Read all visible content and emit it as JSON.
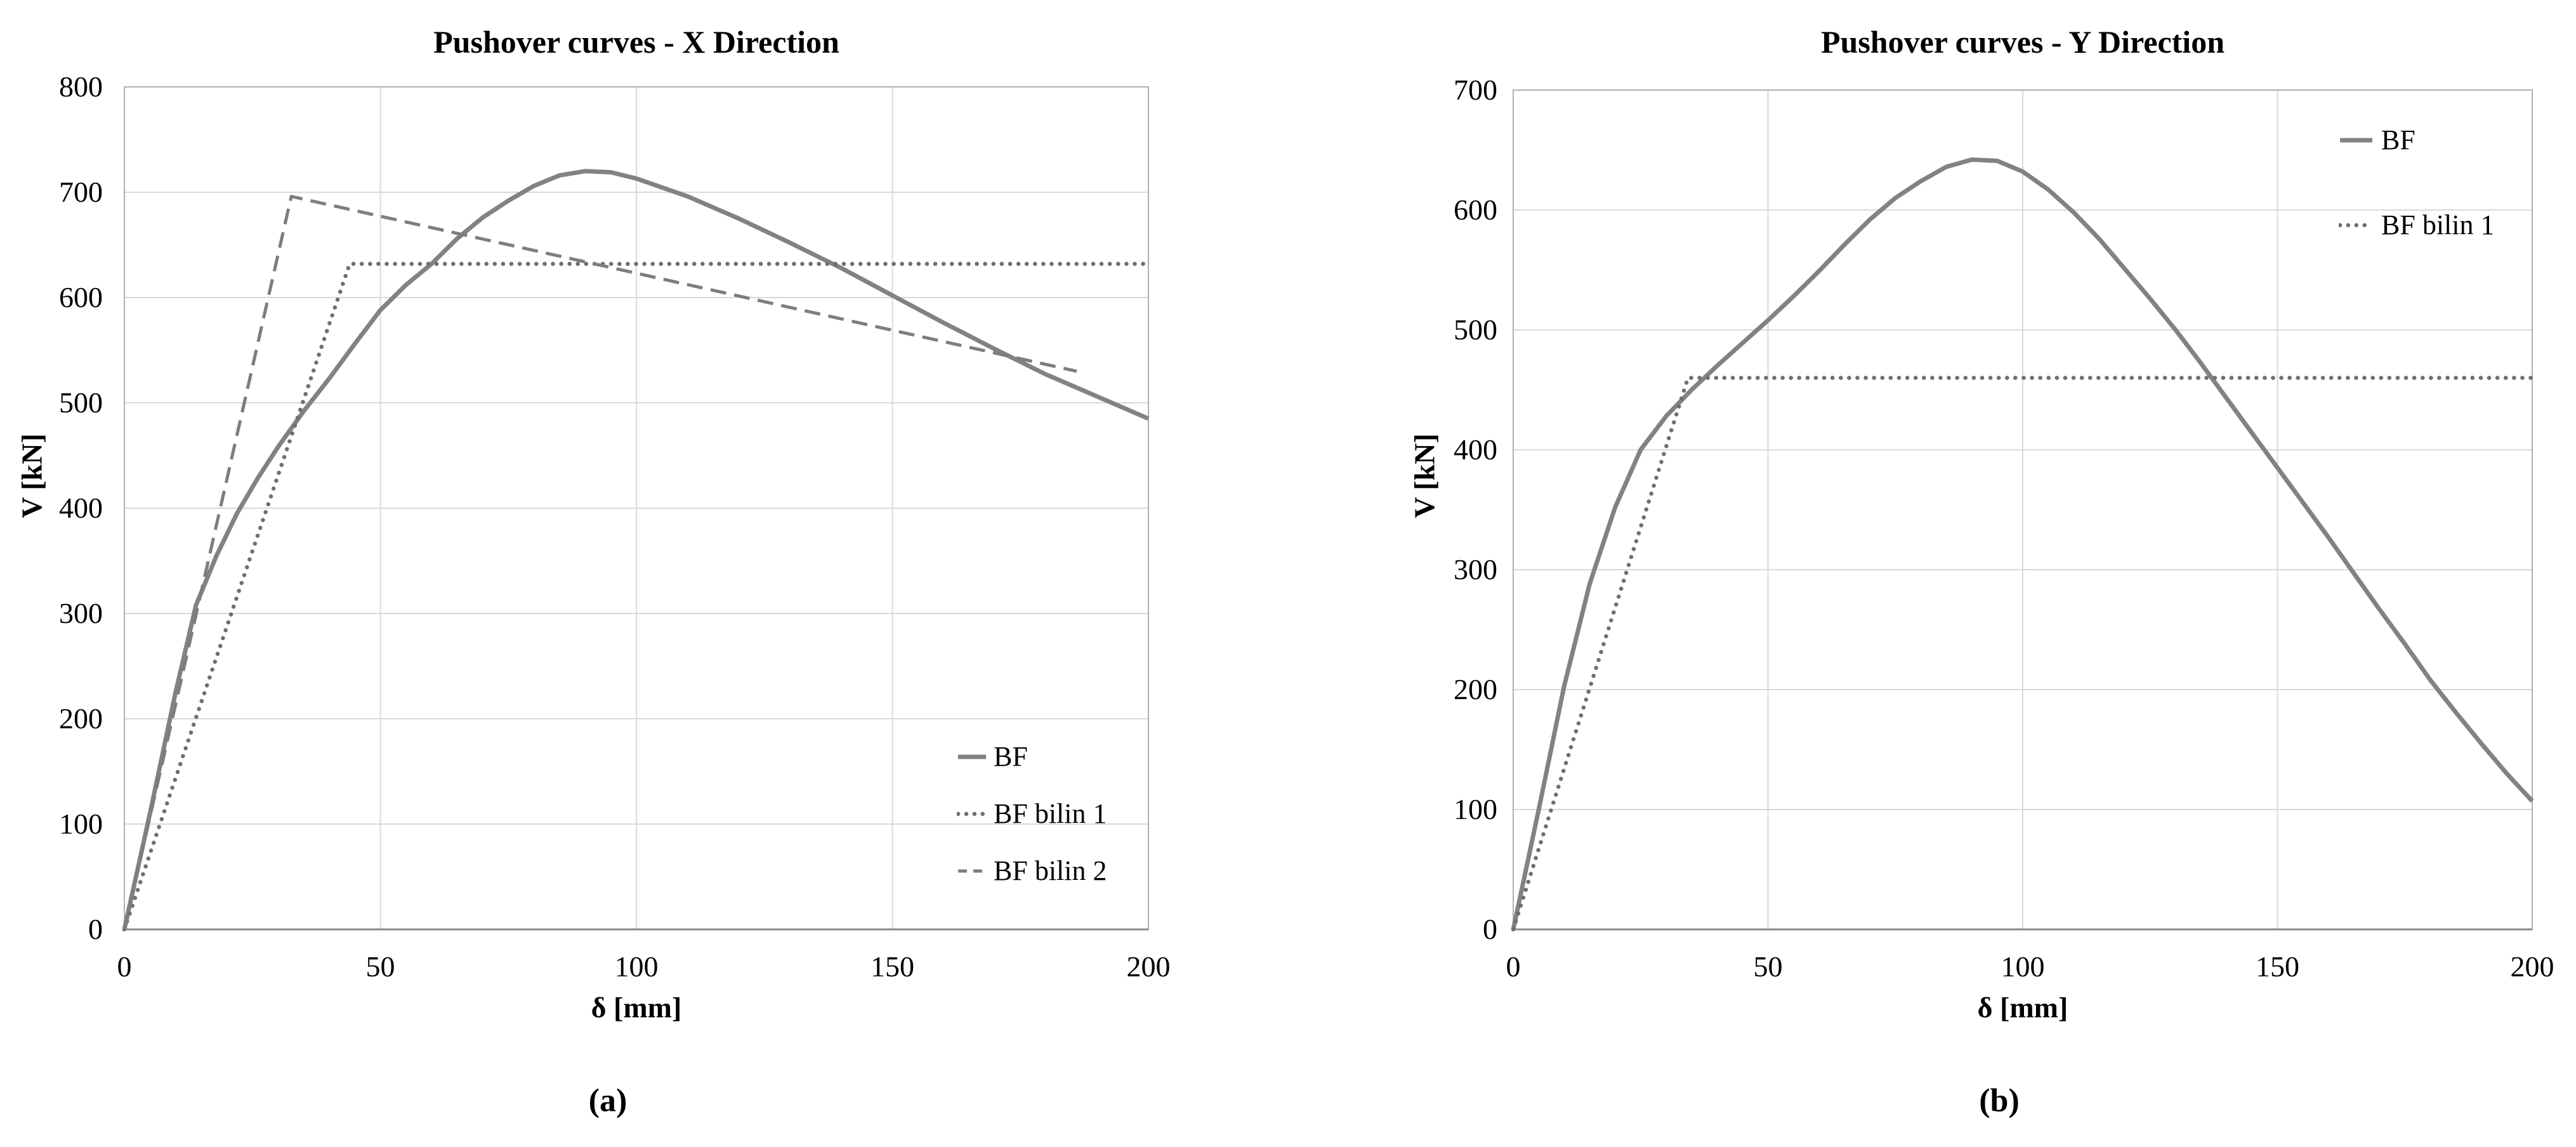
{
  "captions": {
    "a": "(a)",
    "b": "(b)"
  },
  "colors": {
    "background": "#ffffff",
    "text": "#000000",
    "grid": "#d9d9d9",
    "plot_border": "#b0b0b0",
    "axis_line": "#8a8a8a",
    "series_solid": "#828282",
    "series_dotted": "#6f6f6f",
    "series_dashed": "#7d7d7d"
  },
  "chart_data": [
    {
      "type": "line",
      "title": "Pushover curves - X Direction",
      "xlabel": "δ [mm]",
      "ylabel": "V [kN]",
      "xlim": [
        0,
        200
      ],
      "ylim": [
        0,
        800
      ],
      "xticks": [
        0,
        50,
        100,
        150,
        200
      ],
      "yticks": [
        0,
        100,
        200,
        300,
        400,
        500,
        600,
        700,
        800
      ],
      "grid": true,
      "legend_position": "inside-bottom-right",
      "series": [
        {
          "name": "BF",
          "line_style": "solid",
          "color": "#828282",
          "x": [
            0,
            5,
            10,
            14,
            18,
            22,
            26,
            30,
            35,
            40,
            45,
            50,
            55,
            60,
            65,
            70,
            75,
            80,
            85,
            90,
            95,
            100,
            110,
            120,
            130,
            140,
            150,
            160,
            170,
            180,
            190,
            200
          ],
          "y": [
            0,
            110,
            225,
            308,
            355,
            395,
            428,
            458,
            492,
            523,
            556,
            588,
            612,
            632,
            656,
            676,
            692,
            706,
            716,
            720,
            719,
            713,
            696,
            675,
            652,
            628,
            602,
            576,
            551,
            527,
            506,
            485
          ]
        },
        {
          "name": "BF bilin 1",
          "line_style": "dotted",
          "color": "#6f6f6f",
          "x": [
            0,
            44,
            200
          ],
          "y": [
            0,
            632,
            632
          ]
        },
        {
          "name": "BF bilin 2",
          "line_style": "dashed",
          "color": "#7d7d7d",
          "x": [
            0,
            32.6,
            186
          ],
          "y": [
            0,
            696,
            530
          ]
        }
      ]
    },
    {
      "type": "line",
      "title": "Pushover curves - Y Direction",
      "xlabel": "δ [mm]",
      "ylabel": "V [kN]",
      "xlim": [
        0,
        200
      ],
      "ylim": [
        0,
        700
      ],
      "xticks": [
        0,
        50,
        100,
        150,
        200
      ],
      "yticks": [
        0,
        100,
        200,
        300,
        400,
        500,
        600,
        700
      ],
      "grid": true,
      "legend_position": "inside-top-right",
      "series": [
        {
          "name": "BF",
          "line_style": "solid",
          "color": "#828282",
          "x": [
            0,
            5,
            10,
            15,
            20,
            25,
            30,
            35,
            40,
            45,
            50,
            55,
            60,
            65,
            70,
            75,
            80,
            85,
            90,
            95,
            100,
            105,
            110,
            115,
            120,
            125,
            130,
            135,
            140,
            145,
            150,
            155,
            160,
            165,
            170,
            175,
            180,
            185,
            190,
            195,
            200
          ],
          "y": [
            0,
            100,
            203,
            288,
            352,
            400,
            428,
            450,
            470,
            489,
            508,
            528,
            549,
            571,
            592,
            610,
            624,
            636,
            642,
            641,
            632,
            617,
            598,
            576,
            551,
            526,
            500,
            472,
            443,
            414,
            385,
            356,
            327,
            297,
            267,
            238,
            208,
            181,
            155,
            130,
            107
          ]
        },
        {
          "name": "BF bilin 1",
          "line_style": "dotted",
          "color": "#6f6f6f",
          "x": [
            0,
            34.3,
            200
          ],
          "y": [
            0,
            460,
            460
          ]
        }
      ]
    }
  ]
}
